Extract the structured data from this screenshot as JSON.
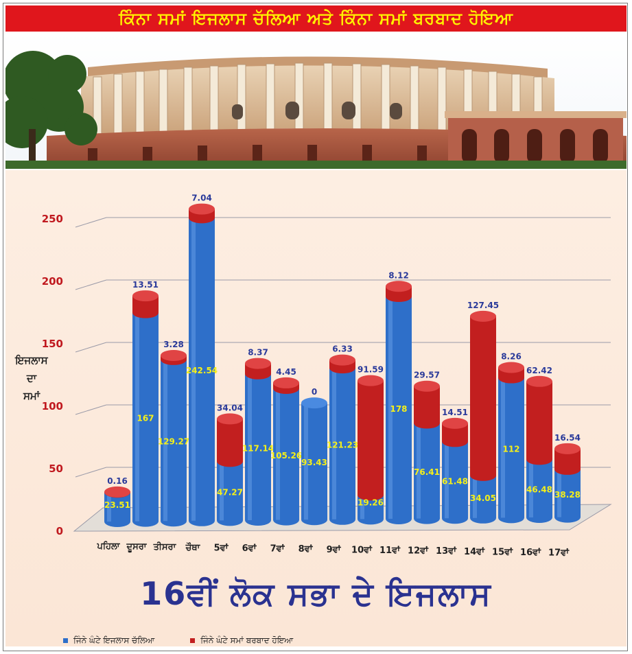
{
  "header": {
    "title": "ਕਿੰਨਾ ਸਮਾਂ ਇਜਲਾਸ ਚੱਲਿਆ ਅਤੇ ਕਿੰਨਾ ਸਮਾਂ ਬਰਬਾਦ ਹੋਇਆ"
  },
  "footer": {
    "title": "16ਵੀਂ ਲੋਕ ਸਭਾ ਦੇ ਇਜਲਾਸ"
  },
  "colors": {
    "blue": "#2e6fc9",
    "red": "#c21f1f",
    "banner": "#e0161c",
    "banner_text": "#fff200",
    "title": "#2a3290"
  },
  "chart_data": {
    "type": "bar",
    "stacked": true,
    "ylabel": [
      "ਇਜਲਾਸ",
      "ਦਾ",
      "ਸਮਾਂ"
    ],
    "ylim": [
      0,
      250
    ],
    "yticks": [
      0,
      50,
      100,
      150,
      200,
      250
    ],
    "grid": true,
    "legend_position": "bottom",
    "categories": [
      "ਪਹਿਲਾ",
      "ਦੂਸਰਾ",
      "ਤੀਸਰਾ",
      "ਚੌਥਾ",
      "5ਵਾਂ",
      "6ਵਾਂ",
      "7ਵਾਂ",
      "8ਵਾਂ",
      "9ਵਾਂ",
      "10ਵਾਂ",
      "11ਵਾਂ",
      "12ਵਾਂ",
      "13ਵਾਂ",
      "14ਵਾਂ",
      "15ਵਾਂ",
      "16ਵਾਂ",
      "17ਵਾਂ"
    ],
    "series": [
      {
        "name": "ਜਿੰਨੇ ਘੰਟੇ ਇਜਲਾਸ ਚੱਲਿਆ",
        "color": "#2e6fc9",
        "values": [
          23.51,
          167,
          129.27,
          242.54,
          47.27,
          117.14,
          105.26,
          93.43,
          121.23,
          19.26,
          178,
          76.41,
          61.48,
          34.05,
          112,
          46.48,
          38.28
        ]
      },
      {
        "name": "ਜਿੰਨੇ ਘੰਟੇ ਸਮਾਂ ਬਰਬਾਦ ਹੋਇਆ",
        "color": "#c21f1f",
        "values": [
          0.16,
          13.51,
          3.28,
          7.04,
          34.04,
          8.37,
          4.45,
          0,
          6.33,
          91.59,
          8.12,
          29.57,
          14.51,
          127.45,
          8.26,
          62.42,
          16.54
        ]
      }
    ]
  }
}
